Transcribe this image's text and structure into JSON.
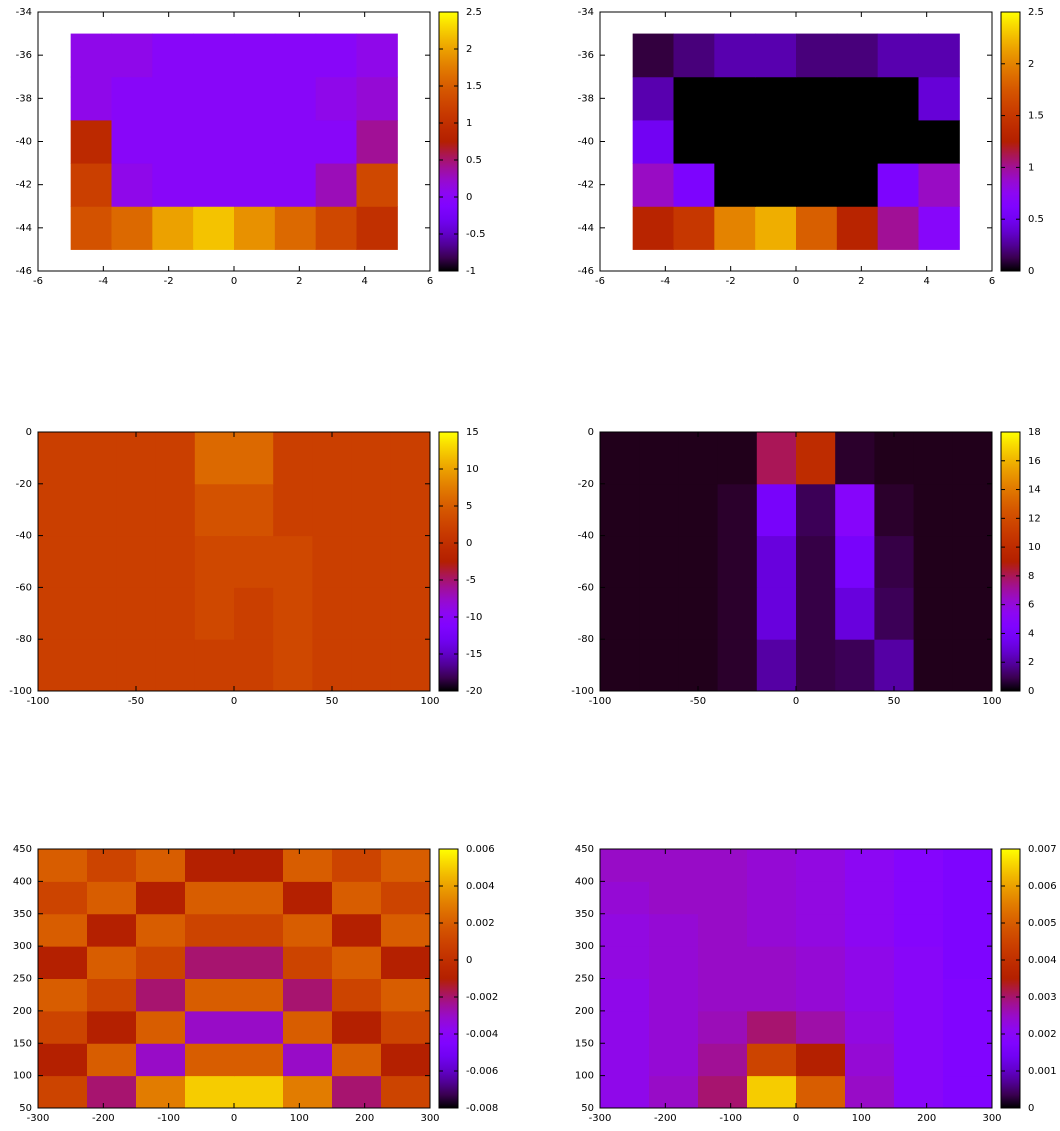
{
  "chart_data": [
    {
      "type": "heatmap",
      "xlim": [
        -6,
        6
      ],
      "ylim": [
        -46,
        -34
      ],
      "xticks": [
        -6,
        -4,
        -2,
        0,
        2,
        4,
        6
      ],
      "yticks": [
        -46,
        -44,
        -42,
        -40,
        -38,
        -36,
        -34
      ],
      "cblim": [
        -1,
        2.5
      ],
      "cbticks": [
        -1,
        -0.5,
        0,
        0.5,
        1,
        1.5,
        2,
        2.5
      ],
      "x": [
        -4.375,
        -3.125,
        -1.875,
        -0.625,
        0.625,
        1.875,
        3.125,
        4.375
      ],
      "y": [
        -44,
        -42,
        -40,
        -38,
        -36
      ],
      "z": [
        [
          1.4,
          1.6,
          2.0,
          2.2,
          1.9,
          1.6,
          1.3,
          1.0
        ],
        [
          1.2,
          0.1,
          0.0,
          0.0,
          0.0,
          0.0,
          0.3,
          1.3
        ],
        [
          0.9,
          0.0,
          0.0,
          0.0,
          0.0,
          0.0,
          0.0,
          0.4
        ],
        [
          0.1,
          0.0,
          0.0,
          0.0,
          0.0,
          0.0,
          0.1,
          0.2
        ],
        [
          0.1,
          0.1,
          0.0,
          0.0,
          0.0,
          0.0,
          0.0,
          0.1
        ]
      ]
    },
    {
      "type": "heatmap",
      "xlim": [
        -6,
        6
      ],
      "ylim": [
        -46,
        -34
      ],
      "xticks": [
        -6,
        -4,
        -2,
        0,
        2,
        4,
        6
      ],
      "yticks": [
        -46,
        -44,
        -42,
        -40,
        -38,
        -36,
        -34
      ],
      "cblim": [
        0,
        2.5
      ],
      "cbticks": [
        0,
        0.5,
        1,
        1.5,
        2,
        2.5
      ],
      "x": [
        -4.375,
        -3.125,
        -1.875,
        -0.625,
        0.625,
        1.875,
        3.125,
        4.375
      ],
      "y": [
        -44,
        -42,
        -40,
        -38,
        -36
      ],
      "z": [
        [
          1.3,
          1.5,
          2.0,
          2.2,
          1.8,
          1.3,
          1.0,
          0.7
        ],
        [
          0.9,
          0.6,
          0.0,
          0.0,
          0.0,
          0.0,
          0.6,
          0.9
        ],
        [
          0.5,
          0.0,
          0.0,
          0.0,
          0.0,
          0.0,
          0.0,
          0.0
        ],
        [
          0.3,
          0.0,
          0.0,
          0.0,
          0.0,
          0.0,
          0.0,
          0.4
        ],
        [
          0.1,
          0.2,
          0.3,
          0.3,
          0.2,
          0.2,
          0.3,
          0.3
        ]
      ]
    },
    {
      "type": "heatmap",
      "xlim": [
        -100,
        100
      ],
      "ylim": [
        -100,
        0
      ],
      "xticks": [
        -100,
        -50,
        0,
        50,
        100
      ],
      "yticks": [
        -100,
        -80,
        -60,
        -40,
        -20,
        0
      ],
      "cblim": [
        -20,
        15
      ],
      "cbticks": [
        -20,
        -15,
        -10,
        -5,
        0,
        5,
        10,
        15
      ],
      "x": [
        -90,
        -70,
        -50,
        -30,
        -10,
        10,
        30,
        50,
        70,
        90
      ],
      "y": [
        -90,
        -70,
        -50,
        -30,
        -10
      ],
      "z": [
        [
          2,
          2,
          2,
          2,
          2,
          2,
          3,
          2,
          2,
          2
        ],
        [
          2,
          2,
          2,
          2,
          3,
          2,
          3,
          2,
          2,
          2
        ],
        [
          2,
          2,
          2,
          2,
          3,
          3,
          3,
          2,
          2,
          2
        ],
        [
          2,
          2,
          2,
          2,
          4,
          4,
          2,
          2,
          2,
          2
        ],
        [
          2,
          2,
          2,
          2,
          6,
          6,
          2,
          2,
          2,
          2
        ]
      ]
    },
    {
      "type": "heatmap",
      "xlim": [
        -100,
        100
      ],
      "ylim": [
        -100,
        0
      ],
      "xticks": [
        -100,
        -50,
        0,
        50,
        100
      ],
      "yticks": [
        -100,
        -80,
        -60,
        -40,
        -20,
        0
      ],
      "cblim": [
        0,
        18
      ],
      "cbticks": [
        0,
        2,
        4,
        6,
        8,
        10,
        12,
        14,
        16,
        18
      ],
      "x": [
        -90,
        -70,
        -50,
        -30,
        -10,
        10,
        30,
        50,
        70,
        90
      ],
      "y": [
        -90,
        -70,
        -50,
        -30,
        -10
      ],
      "z": [
        [
          0.3,
          0.3,
          0.3,
          0.5,
          2,
          0.8,
          1,
          2,
          0.3,
          0.3
        ],
        [
          0.3,
          0.3,
          0.3,
          0.5,
          3,
          0.8,
          3,
          1,
          0.3,
          0.3
        ],
        [
          0.3,
          0.3,
          0.3,
          0.5,
          3,
          0.8,
          4,
          0.8,
          0.3,
          0.3
        ],
        [
          0.3,
          0.3,
          0.3,
          0.5,
          4,
          1,
          5,
          0.5,
          0.3,
          0.3
        ],
        [
          0.3,
          0.3,
          0.3,
          0.3,
          8,
          10,
          0.5,
          0.3,
          0.3,
          0.3
        ]
      ]
    },
    {
      "type": "heatmap",
      "xlim": [
        -300,
        300
      ],
      "ylim": [
        50,
        450
      ],
      "xticks": [
        -300,
        -200,
        -100,
        0,
        100,
        200,
        300
      ],
      "yticks": [
        50,
        100,
        150,
        200,
        250,
        300,
        350,
        400,
        450
      ],
      "cblim": [
        -0.008,
        0.006
      ],
      "cbticks": [
        -0.008,
        -0.006,
        -0.004,
        -0.002,
        0,
        0.002,
        0.004,
        0.006
      ],
      "x": [
        -262.5,
        -187.5,
        -112.5,
        -37.5,
        37.5,
        112.5,
        187.5,
        262.5
      ],
      "y": [
        75,
        125,
        175,
        225,
        275,
        325,
        375,
        425
      ],
      "z": [
        [
          0.001,
          -0.002,
          0.003,
          0.005,
          0.005,
          0.003,
          -0.002,
          0.001
        ],
        [
          -0.001,
          0.002,
          -0.003,
          0.002,
          0.002,
          -0.003,
          0.002,
          -0.001
        ],
        [
          0.001,
          -0.001,
          0.002,
          -0.003,
          -0.003,
          0.002,
          -0.001,
          0.001
        ],
        [
          0.002,
          0.001,
          -0.002,
          0.002,
          0.002,
          -0.002,
          0.001,
          0.002
        ],
        [
          -0.001,
          0.002,
          0.001,
          -0.002,
          -0.002,
          0.001,
          0.002,
          -0.001
        ],
        [
          0.002,
          -0.001,
          0.002,
          0.001,
          0.001,
          0.002,
          -0.001,
          0.002
        ],
        [
          0.001,
          0.002,
          -0.001,
          0.002,
          0.002,
          -0.001,
          0.002,
          0.001
        ],
        [
          0.002,
          0.001,
          0.002,
          -0.001,
          -0.001,
          0.002,
          0.001,
          0.002
        ]
      ]
    },
    {
      "type": "heatmap",
      "xlim": [
        -300,
        300
      ],
      "ylim": [
        50,
        450
      ],
      "xticks": [
        -300,
        -200,
        -100,
        0,
        100,
        200,
        300
      ],
      "yticks": [
        50,
        100,
        150,
        200,
        250,
        300,
        350,
        400,
        450
      ],
      "cblim": [
        0,
        0.007
      ],
      "cbticks": [
        0,
        0.001,
        0.002,
        0.003,
        0.004,
        0.005,
        0.006,
        0.007
      ],
      "x": [
        -262.5,
        -187.5,
        -112.5,
        -37.5,
        37.5,
        112.5,
        187.5,
        262.5
      ],
      "y": [
        75,
        125,
        175,
        225,
        275,
        325,
        375,
        425
      ],
      "z": [
        [
          0.0022,
          0.0025,
          0.003,
          0.0065,
          0.005,
          0.0025,
          0.002,
          0.0018
        ],
        [
          0.0022,
          0.0024,
          0.0028,
          0.0045,
          0.0035,
          0.0024,
          0.002,
          0.0018
        ],
        [
          0.0022,
          0.0024,
          0.0026,
          0.003,
          0.0027,
          0.0023,
          0.002,
          0.0018
        ],
        [
          0.0022,
          0.0024,
          0.0025,
          0.0025,
          0.0024,
          0.0022,
          0.002,
          0.0018
        ],
        [
          0.0023,
          0.0024,
          0.0025,
          0.0025,
          0.0024,
          0.0022,
          0.002,
          0.0017
        ],
        [
          0.0023,
          0.0024,
          0.0025,
          0.0024,
          0.0023,
          0.0021,
          0.0019,
          0.0017
        ],
        [
          0.0024,
          0.0025,
          0.0025,
          0.0024,
          0.0023,
          0.0021,
          0.0019,
          0.0017
        ],
        [
          0.0025,
          0.0025,
          0.0025,
          0.0024,
          0.0023,
          0.0021,
          0.0019,
          0.0017
        ]
      ]
    }
  ]
}
